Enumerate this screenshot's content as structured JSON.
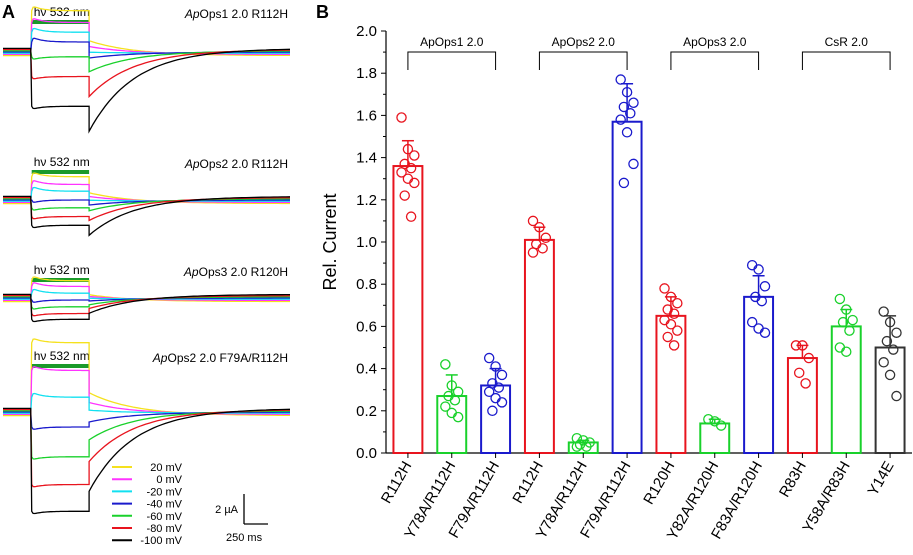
{
  "panelA": {
    "label": "A",
    "light_label": "hν 532 nm",
    "traces": [
      {
        "title_italic": "Ap",
        "title_rest": "Ops1 2.0 R112H",
        "steady": [
          4.2,
          3.0,
          2.0,
          1.0,
          -0.5,
          -2.5,
          -5.5
        ],
        "tail": [
          1.2,
          0.6,
          0.0,
          -0.6,
          -2.0,
          -4.5,
          -8.0
        ],
        "light_on": 250,
        "light_off": 750,
        "duration": 2500
      },
      {
        "title_italic": "Ap",
        "title_rest": "Ops2 2.0 R112H",
        "steady": [
          2.4,
          1.6,
          0.9,
          0.0,
          -0.8,
          -1.7,
          -2.6
        ],
        "tail": [
          0.8,
          0.4,
          0.0,
          -0.5,
          -1.1,
          -2.1,
          -3.6
        ],
        "light_on": 250,
        "light_off": 750,
        "duration": 2500
      },
      {
        "title_italic": "Ap",
        "title_rest": "Ops3 2.0 R120H",
        "steady": [
          1.8,
          1.2,
          0.5,
          -0.2,
          -0.9,
          -1.6,
          -2.2
        ],
        "tail": [
          0.4,
          0.2,
          0.0,
          -0.3,
          -0.7,
          -1.1,
          -1.6
        ],
        "light_on": 250,
        "light_off": 750,
        "duration": 2500
      },
      {
        "title_italic": "Ap",
        "title_rest": "Ops2 2.0 F79A/R112H",
        "steady": [
          7.0,
          4.2,
          1.5,
          -1.5,
          -4.5,
          -7.3,
          -10.0
        ],
        "tail": [
          2.0,
          1.0,
          0.2,
          -1.0,
          -2.8,
          -5.0,
          -8.0
        ],
        "light_on": 250,
        "light_off": 750,
        "duration": 2500
      }
    ],
    "legend": [
      "20 mV",
      "0 mV",
      "-20 mV",
      "-40 mV",
      "-60 mV",
      "-80 mV",
      "-100 mV"
    ],
    "colors": [
      "#f5e11e",
      "#ff33ff",
      "#12e0f0",
      "#1a1acc",
      "#19d12b",
      "#e8141e",
      "#000000"
    ],
    "scale_current": "2 µA",
    "scale_time": "250 ms"
  },
  "chart_data": {
    "type": "bar",
    "panel_label": "B",
    "ylabel": "Rel. Current",
    "ylim": [
      0.0,
      2.0
    ],
    "yticks": [
      "0.0",
      "0.2",
      "0.4",
      "0.6",
      "0.8",
      "1.0",
      "1.2",
      "1.4",
      "1.6",
      "1.8",
      "2.0"
    ],
    "groups": [
      {
        "label": "ApOps1 2.0",
        "first": 0,
        "last": 2
      },
      {
        "label": "ApOps2 2.0",
        "first": 3,
        "last": 5
      },
      {
        "label": "ApOps3 2.0",
        "first": 6,
        "last": 8
      },
      {
        "label": "CsR 2.0",
        "first": 9,
        "last": 11
      }
    ],
    "categories": [
      "R112H",
      "Y78A/R112H",
      "F79A/R112H",
      "R112H",
      "Y78A/R112H",
      "F79A/R112H",
      "R120H",
      "Y82A/R120H",
      "F83A/R120H",
      "R83H",
      "Y58A/R83H",
      "Y14E"
    ],
    "values": [
      1.36,
      0.27,
      0.32,
      1.01,
      0.05,
      1.57,
      0.65,
      0.14,
      0.74,
      0.45,
      0.6,
      0.5
    ],
    "errors": [
      0.12,
      0.1,
      0.08,
      0.06,
      0.01,
      0.18,
      0.09,
      0.02,
      0.1,
      0.06,
      0.08,
      0.15
    ],
    "colors": [
      "#e8141e",
      "#19d12b",
      "#1a1acc",
      "#e8141e",
      "#19d12b",
      "#1a1acc",
      "#e8141e",
      "#19d12b",
      "#1a1acc",
      "#e8141e",
      "#19d12b",
      "#333333"
    ],
    "points": [
      [
        1.59,
        1.44,
        1.41,
        1.37,
        1.35,
        1.33,
        1.3,
        1.28,
        1.22,
        1.12
      ],
      [
        0.42,
        0.32,
        0.29,
        0.27,
        0.25,
        0.22,
        0.19,
        0.17
      ],
      [
        0.45,
        0.41,
        0.37,
        0.33,
        0.31,
        0.29,
        0.26,
        0.24,
        0.2
      ],
      [
        1.1,
        1.07,
        1.02,
        0.99,
        0.97,
        0.95
      ],
      [
        0.07,
        0.06,
        0.05,
        0.04,
        0.03,
        0.03
      ],
      [
        1.77,
        1.71,
        1.66,
        1.64,
        1.61,
        1.58,
        1.52,
        1.37,
        1.28
      ],
      [
        0.78,
        0.74,
        0.71,
        0.68,
        0.66,
        0.63,
        0.61,
        0.58,
        0.55,
        0.51
      ],
      [
        0.16,
        0.15,
        0.13
      ],
      [
        0.89,
        0.87,
        0.79,
        0.74,
        0.72,
        0.62,
        0.59,
        0.57
      ],
      [
        0.51,
        0.51,
        0.45,
        0.38,
        0.33
      ],
      [
        0.73,
        0.68,
        0.63,
        0.62,
        0.58,
        0.5,
        0.48
      ],
      [
        0.67,
        0.62,
        0.57,
        0.53,
        0.49,
        0.43,
        0.37,
        0.27
      ]
    ]
  }
}
